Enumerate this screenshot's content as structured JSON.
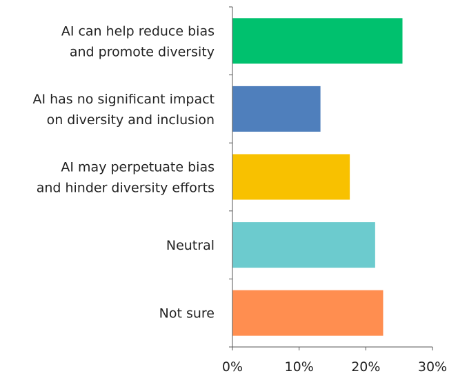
{
  "chart_data": {
    "type": "bar",
    "orientation": "horizontal",
    "categories": [
      [
        "AI can help reduce bias",
        "and promote diversity"
      ],
      [
        "AI has no significant impact",
        "on diversity and inclusion"
      ],
      [
        "AI may perpetuate bias",
        "and hinder diversity efforts"
      ],
      [
        "Neutral"
      ],
      [
        "Not sure"
      ]
    ],
    "values": [
      25.5,
      13.2,
      17.6,
      21.4,
      22.6
    ],
    "colors": [
      "#00c16e",
      "#4f7fbc",
      "#f8c100",
      "#6ccbce",
      "#ff8e50"
    ],
    "xticks": [
      "0%",
      "10%",
      "20%",
      "30%"
    ],
    "xlim": [
      0,
      30
    ],
    "title": "",
    "xlabel": "",
    "ylabel": "",
    "grid": false,
    "legend": "none"
  }
}
